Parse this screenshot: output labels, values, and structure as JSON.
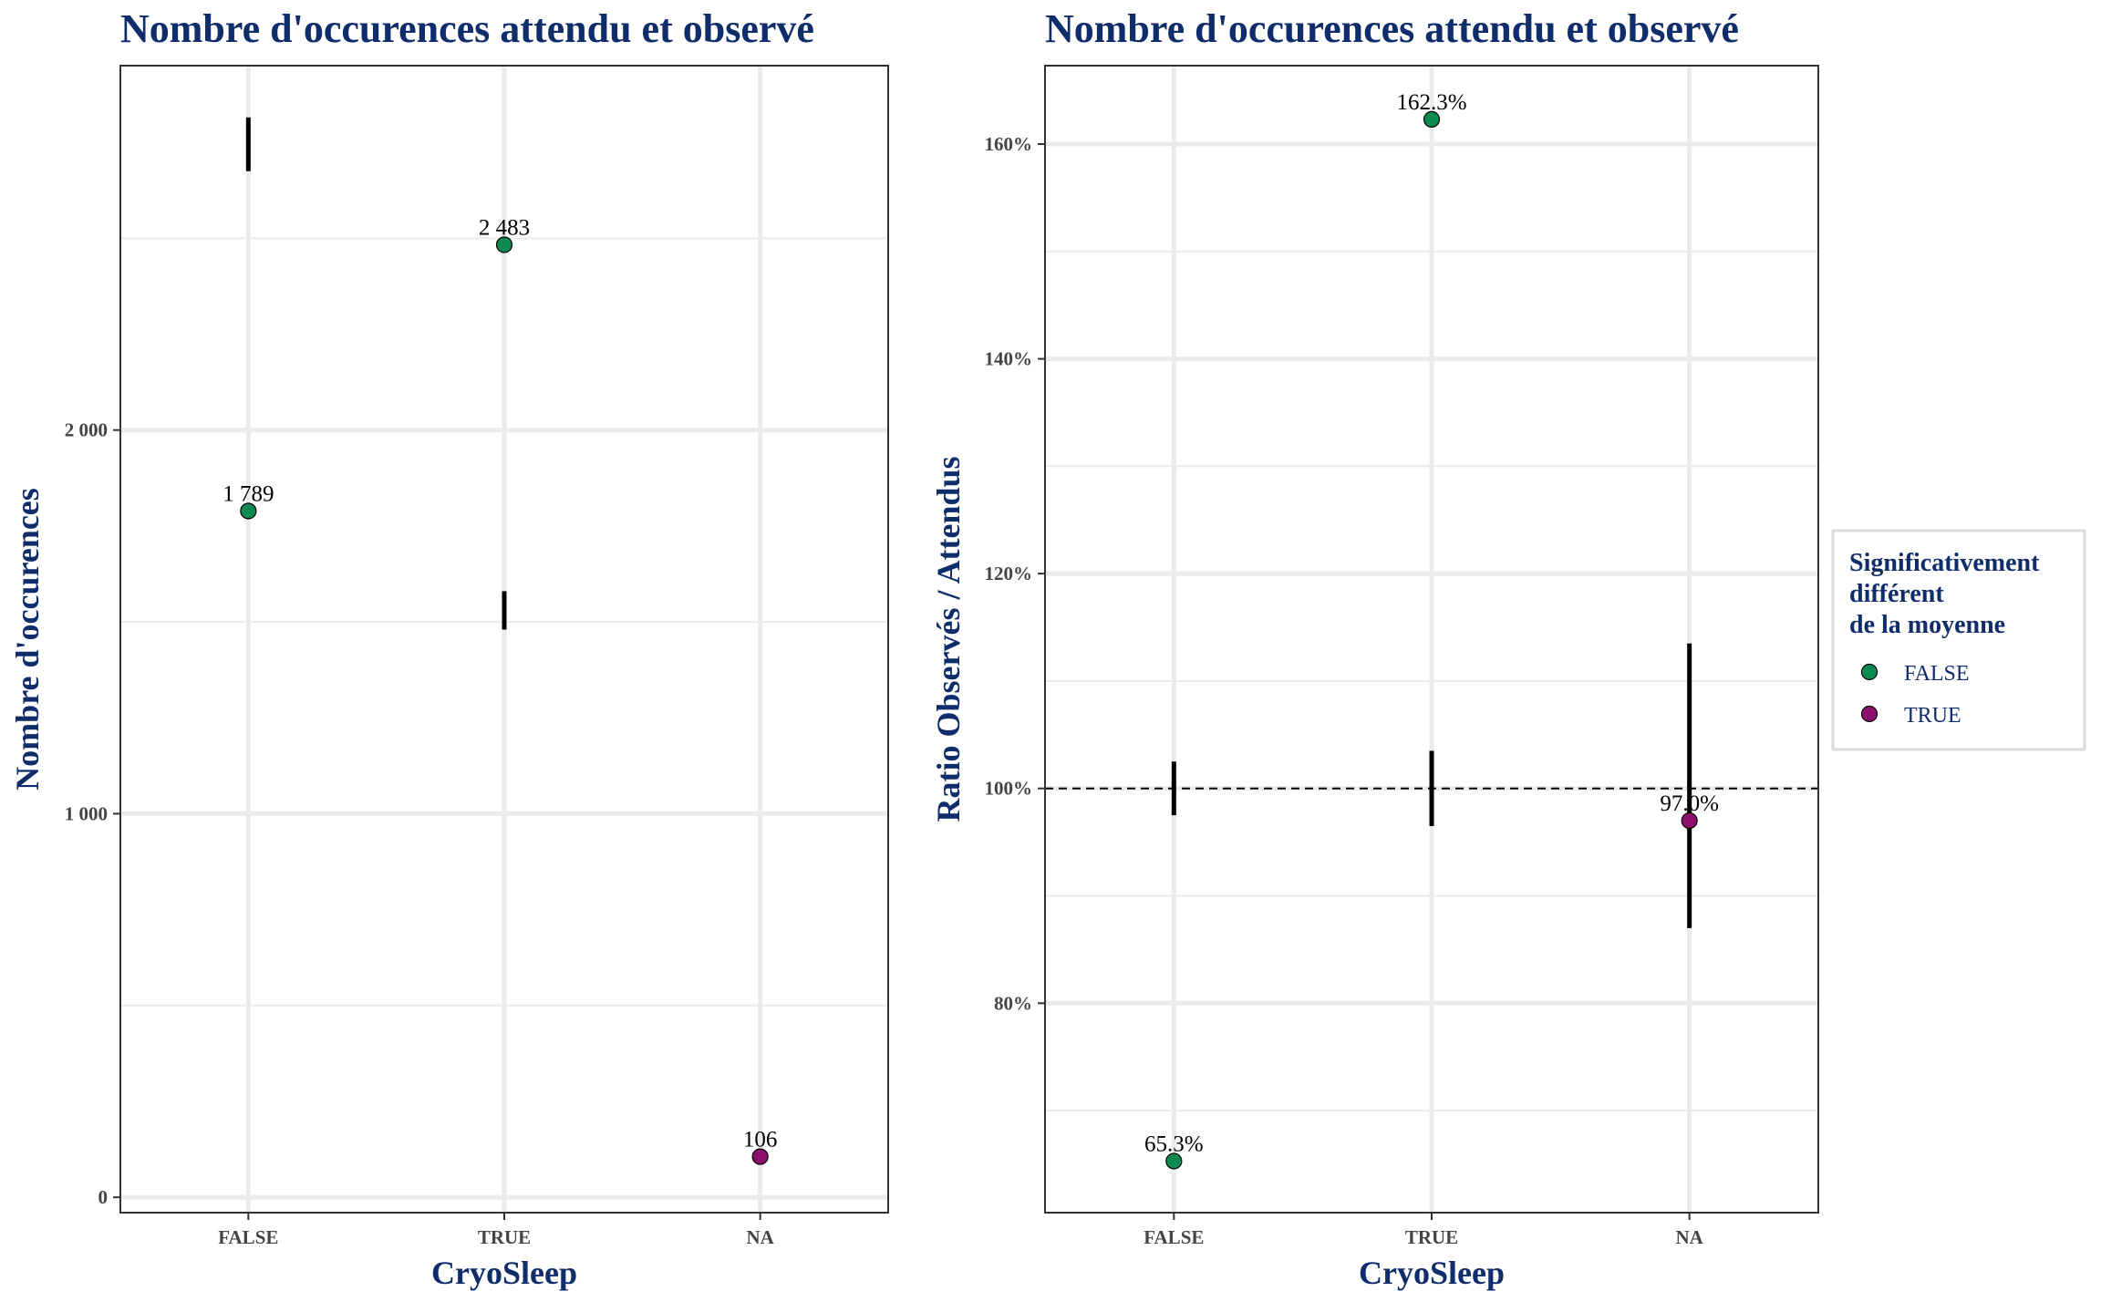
{
  "chart_data": [
    {
      "type": "scatter",
      "title": "Nombre d'occurences attendu et observé",
      "xlabel": "CryoSleep",
      "ylabel": "Nombre d'occurences",
      "categories": [
        "FALSE",
        "TRUE",
        "NA"
      ],
      "ylim": [
        -40,
        2950
      ],
      "yticks": [
        0,
        1000,
        2000
      ],
      "ytick_labels": [
        "0",
        "1 000",
        "2 000"
      ],
      "points": [
        {
          "category": "FALSE",
          "value": 1789,
          "label": "1 789",
          "significant": "FALSE"
        },
        {
          "category": "TRUE",
          "value": 2483,
          "label": "2 483",
          "significant": "FALSE"
        },
        {
          "category": "NA",
          "value": 106,
          "label": "106",
          "significant": "TRUE"
        }
      ],
      "expected_ranges": [
        {
          "category": "FALSE",
          "low": 2675,
          "high": 2815
        },
        {
          "category": "TRUE",
          "low": 1480,
          "high": 1580
        }
      ]
    },
    {
      "type": "scatter",
      "title": "Nombre d'occurences attendu et observé",
      "xlabel": "CryoSleep",
      "ylabel": "Ratio Observés / Attendus",
      "categories": [
        "FALSE",
        "TRUE",
        "NA"
      ],
      "ylim": [
        60.5,
        167.3
      ],
      "yticks": [
        80,
        100,
        120,
        140,
        160
      ],
      "ytick_labels": [
        "80%",
        "100%",
        "120%",
        "140%",
        "160%"
      ],
      "reference_line": 100,
      "points": [
        {
          "category": "FALSE",
          "value": 65.3,
          "label": "65.3%",
          "significant": "FALSE"
        },
        {
          "category": "TRUE",
          "value": 162.3,
          "label": "162.3%",
          "significant": "FALSE"
        },
        {
          "category": "NA",
          "value": 97.0,
          "label": "97.0%",
          "significant": "TRUE"
        }
      ],
      "expected_ranges": [
        {
          "category": "FALSE",
          "low": 97.5,
          "high": 102.5
        },
        {
          "category": "TRUE",
          "low": 96.5,
          "high": 103.5
        },
        {
          "category": "NA",
          "low": 87,
          "high": 113.5
        }
      ]
    }
  ],
  "legend": {
    "title_lines": [
      "Significativement",
      "différent",
      "de la moyenne"
    ],
    "items": [
      {
        "label": "FALSE",
        "color": "#0d8a4f"
      },
      {
        "label": "TRUE",
        "color": "#8c0f6e"
      }
    ],
    "placement": "right"
  },
  "colors": {
    "FALSE": "#0d8a4f",
    "TRUE": "#8c0f6e",
    "title": "#0f2c6b",
    "grid": "#ebebeb"
  }
}
